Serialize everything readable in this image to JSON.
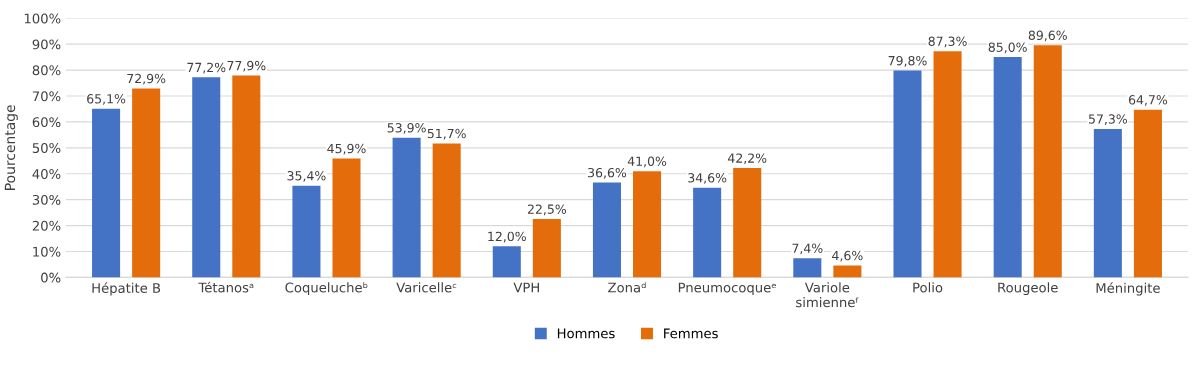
{
  "chart_data": {
    "type": "bar",
    "ylabel": "Pourcentage",
    "categories": [
      "Hépatite B",
      "Tétanosᵃ",
      "Coquelucheᵇ",
      "Varicelleᶜ",
      "VPH",
      "Zonaᵈ",
      "Pneumocoqueᵉ",
      "Variole\nsimienneᶠ",
      "Polio",
      "Rougeole",
      "Méningite"
    ],
    "series": [
      {
        "name": "Hommes",
        "color": "#4472c4",
        "values": [
          65.1,
          77.2,
          35.4,
          53.9,
          12.0,
          36.6,
          34.6,
          7.4,
          79.8,
          85.0,
          57.3
        ],
        "value_labels": [
          "65,1%",
          "77,2%",
          "35,4%",
          "53,9%",
          "12,0%",
          "36,6%",
          "34,6%",
          "7,4%",
          "79,8%",
          "85,0%",
          "57,3%"
        ]
      },
      {
        "name": "Femmes",
        "color": "#e46c0a",
        "values": [
          72.9,
          77.9,
          45.9,
          51.7,
          22.5,
          41.0,
          42.2,
          4.6,
          87.3,
          89.6,
          64.7
        ],
        "value_labels": [
          "72,9%",
          "77,9%",
          "45,9%",
          "51,7%",
          "22,5%",
          "41,0%",
          "42,2%",
          "4,6%",
          "87,3%",
          "89,6%",
          "64,7%"
        ]
      }
    ],
    "ylim": [
      0,
      100
    ],
    "yticks": [
      {
        "value": 0,
        "label": "0%"
      },
      {
        "value": 10,
        "label": "10%"
      },
      {
        "value": 20,
        "label": "20%"
      },
      {
        "value": 30,
        "label": "30%"
      },
      {
        "value": 40,
        "label": "40%"
      },
      {
        "value": 50,
        "label": "50%"
      },
      {
        "value": 60,
        "label": "60%"
      },
      {
        "value": 70,
        "label": "70%"
      },
      {
        "value": 80,
        "label": "80%"
      },
      {
        "value": 90,
        "label": "90%"
      },
      {
        "value": 100,
        "label": "100%"
      }
    ],
    "grid": "y",
    "legend": "bottom"
  }
}
